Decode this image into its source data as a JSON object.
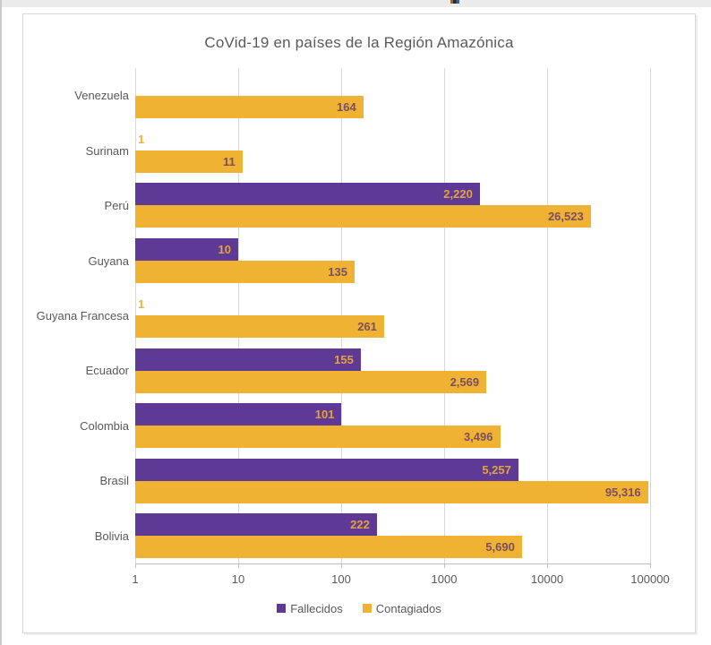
{
  "page": {
    "top_strip_color": "#ebebeb"
  },
  "chart_data": {
    "type": "bar",
    "orientation": "horizontal",
    "x_scale": "log",
    "title": "CoVid-19 en países de la Región Amazónica",
    "categories": [
      "Venezuela",
      "Surinam",
      "Perú",
      "Guyana",
      "Guyana Francesa",
      "Ecuador",
      "Colombia",
      "Brasil",
      "Bolivia"
    ],
    "series": [
      {
        "name": "Fallecidos",
        "color": "#5e3a96",
        "label_color": "#e3a33c",
        "values": [
          null,
          1,
          2220,
          10,
          1,
          155,
          101,
          5257,
          222
        ],
        "labels": [
          "",
          "1",
          "2,220",
          "10",
          "1",
          "155",
          "101",
          "5,257",
          "222"
        ]
      },
      {
        "name": "Contagiados",
        "color": "#f0b232",
        "label_color": "#7a4f63",
        "values": [
          164,
          11,
          26523,
          135,
          261,
          2569,
          3496,
          95316,
          5690
        ],
        "labels": [
          "164",
          "11",
          "26,523",
          "135",
          "261",
          "2,569",
          "3,496",
          "95,316",
          "5,690"
        ]
      }
    ],
    "x_ticks": [
      1,
      10,
      100,
      1000,
      10000,
      100000
    ],
    "x_tick_labels": [
      "1",
      "10",
      "100",
      "1000",
      "10000",
      "100000"
    ],
    "xlim": [
      1,
      100000
    ],
    "grid": true,
    "legend_position": "bottom",
    "outside_label_color": "#efaf3a",
    "grid_color": "#d9d9d9",
    "axis_text_color": "#595959"
  }
}
